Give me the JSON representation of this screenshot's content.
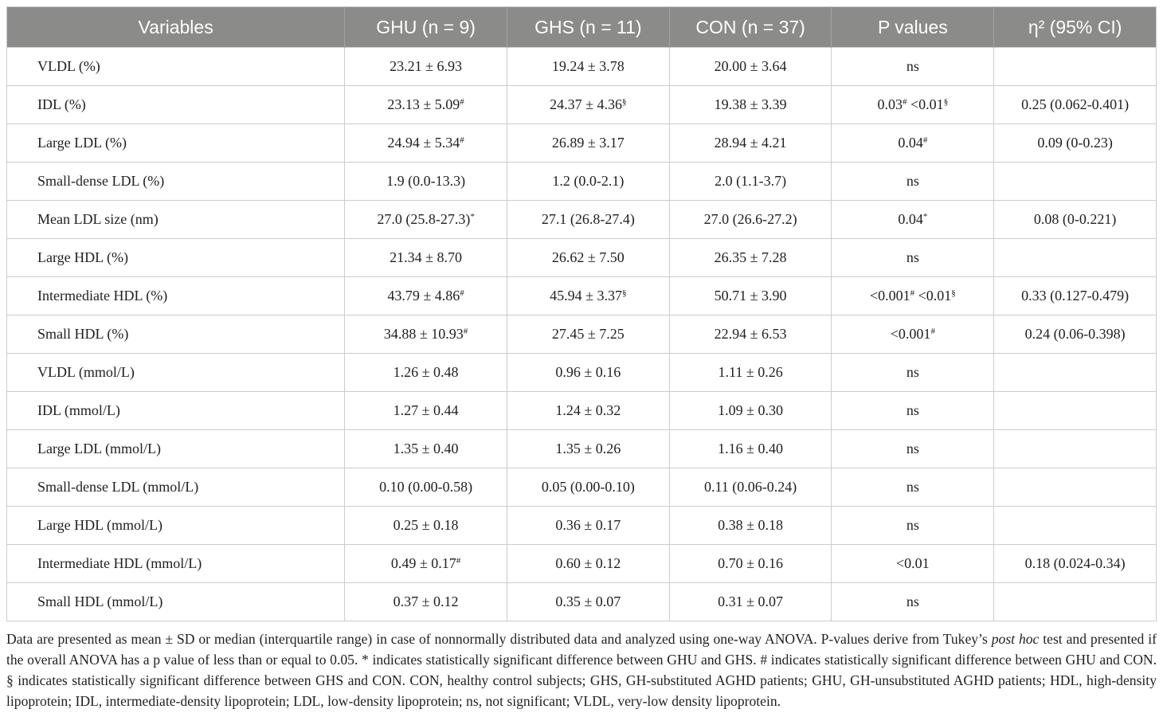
{
  "colors": {
    "header_bg": "#8b8b89",
    "header_text": "#ffffff",
    "border": "#cccccc",
    "text": "#1f1f1f"
  },
  "header": {
    "columns": [
      "Variables",
      "GHU (n = 9)",
      "GHS (n = 11)",
      "CON (n = 37)",
      "P values",
      "η² (95% CI)"
    ]
  },
  "table": {
    "rows": [
      {
        "variable": "VLDL (%)",
        "cells": [
          [
            {
              "t": "23.21 ± 6.93"
            }
          ],
          [
            {
              "t": "19.24 ± 3.78"
            }
          ],
          [
            {
              "t": "20.00 ± 3.64"
            }
          ],
          [
            {
              "t": "ns"
            }
          ],
          []
        ]
      },
      {
        "variable": "IDL (%)",
        "cells": [
          [
            {
              "t": "23.13 ± 5.09"
            },
            {
              "s": "#"
            }
          ],
          [
            {
              "t": "24.37 ± 4.36"
            },
            {
              "s": "§"
            }
          ],
          [
            {
              "t": "19.38 ± 3.39"
            }
          ],
          [
            {
              "t": "0.03"
            },
            {
              "s": "#"
            },
            {
              "t": " <0.01"
            },
            {
              "s": "§"
            }
          ],
          [
            {
              "t": "0.25 (0.062-0.401)"
            }
          ]
        ]
      },
      {
        "variable": "Large LDL (%)",
        "cells": [
          [
            {
              "t": "24.94 ± 5.34"
            },
            {
              "s": "#"
            }
          ],
          [
            {
              "t": "26.89 ± 3.17"
            }
          ],
          [
            {
              "t": "28.94 ± 4.21"
            }
          ],
          [
            {
              "t": "0.04"
            },
            {
              "s": "#"
            }
          ],
          [
            {
              "t": "0.09 (0-0.23)"
            }
          ]
        ]
      },
      {
        "variable": "Small-dense LDL (%)",
        "cells": [
          [
            {
              "t": "1.9 (0.0-13.3)"
            }
          ],
          [
            {
              "t": "1.2 (0.0-2.1)"
            }
          ],
          [
            {
              "t": "2.0 (1.1-3.7)"
            }
          ],
          [
            {
              "t": "ns"
            }
          ],
          []
        ]
      },
      {
        "variable": "Mean LDL size (nm)",
        "cells": [
          [
            {
              "t": "27.0 (25.8-27.3)"
            },
            {
              "s": "*"
            }
          ],
          [
            {
              "t": "27.1 (26.8-27.4)"
            }
          ],
          [
            {
              "t": "27.0 (26.6-27.2)"
            }
          ],
          [
            {
              "t": "0.04"
            },
            {
              "s": "*"
            }
          ],
          [
            {
              "t": "0.08 (0-0.221)"
            }
          ]
        ]
      },
      {
        "variable": "Large HDL (%)",
        "cells": [
          [
            {
              "t": "21.34 ± 8.70"
            }
          ],
          [
            {
              "t": "26.62 ± 7.50"
            }
          ],
          [
            {
              "t": "26.35 ± 7.28"
            }
          ],
          [
            {
              "t": "ns"
            }
          ],
          []
        ]
      },
      {
        "variable": "Intermediate HDL (%)",
        "cells": [
          [
            {
              "t": "43.79 ± 4.86"
            },
            {
              "s": "#"
            }
          ],
          [
            {
              "t": "45.94 ± 3.37"
            },
            {
              "s": "§"
            }
          ],
          [
            {
              "t": "50.71 ± 3.90"
            }
          ],
          [
            {
              "t": "<0.001"
            },
            {
              "s": "#"
            },
            {
              "t": " <0.01"
            },
            {
              "s": "§"
            }
          ],
          [
            {
              "t": "0.33 (0.127-0.479)"
            }
          ]
        ]
      },
      {
        "variable": "Small HDL (%)",
        "cells": [
          [
            {
              "t": "34.88 ± 10.93"
            },
            {
              "s": "#"
            }
          ],
          [
            {
              "t": "27.45 ± 7.25"
            }
          ],
          [
            {
              "t": "22.94 ± 6.53"
            }
          ],
          [
            {
              "t": "<0.001"
            },
            {
              "s": "#"
            }
          ],
          [
            {
              "t": "0.24 (0.06-0.398)"
            }
          ]
        ]
      },
      {
        "variable": "VLDL (mmol/L)",
        "cells": [
          [
            {
              "t": "1.26 ± 0.48"
            }
          ],
          [
            {
              "t": "0.96 ± 0.16"
            }
          ],
          [
            {
              "t": "1.11 ± 0.26"
            }
          ],
          [
            {
              "t": "ns"
            }
          ],
          []
        ]
      },
      {
        "variable": "IDL (mmol/L)",
        "cells": [
          [
            {
              "t": "1.27 ± 0.44"
            }
          ],
          [
            {
              "t": "1.24 ± 0.32"
            }
          ],
          [
            {
              "t": "1.09 ± 0.30"
            }
          ],
          [
            {
              "t": "ns"
            }
          ],
          []
        ]
      },
      {
        "variable": "Large LDL (mmol/L)",
        "cells": [
          [
            {
              "t": "1.35 ± 0.40"
            }
          ],
          [
            {
              "t": "1.35 ± 0.26"
            }
          ],
          [
            {
              "t": "1.16 ± 0.40"
            }
          ],
          [
            {
              "t": "ns"
            }
          ],
          []
        ]
      },
      {
        "variable": "Small-dense LDL (mmol/L)",
        "cells": [
          [
            {
              "t": "0.10 (0.00-0.58)"
            }
          ],
          [
            {
              "t": "0.05 (0.00-0.10)"
            }
          ],
          [
            {
              "t": "0.11 (0.06-0.24)"
            }
          ],
          [
            {
              "t": "ns"
            }
          ],
          []
        ]
      },
      {
        "variable": "Large HDL (mmol/L)",
        "cells": [
          [
            {
              "t": "0.25 ± 0.18"
            }
          ],
          [
            {
              "t": "0.36 ± 0.17"
            }
          ],
          [
            {
              "t": "0.38 ± 0.18"
            }
          ],
          [
            {
              "t": "ns"
            }
          ],
          []
        ]
      },
      {
        "variable": "Intermediate HDL (mmol/L)",
        "cells": [
          [
            {
              "t": "0.49 ± 0.17"
            },
            {
              "s": "#"
            }
          ],
          [
            {
              "t": "0.60 ± 0.12"
            }
          ],
          [
            {
              "t": "0.70 ± 0.16"
            }
          ],
          [
            {
              "t": "<0.01"
            }
          ],
          [
            {
              "t": "0.18 (0.024-0.34)"
            }
          ]
        ]
      },
      {
        "variable": "Small HDL (mmol/L)",
        "cells": [
          [
            {
              "t": "0.37 ± 0.12"
            }
          ],
          [
            {
              "t": "0.35 ± 0.07"
            }
          ],
          [
            {
              "t": "0.31 ± 0.07"
            }
          ],
          [
            {
              "t": "ns"
            }
          ],
          []
        ]
      }
    ]
  },
  "footnote": {
    "segments": [
      {
        "t": "Data are presented as mean ± SD or median (interquartile range) in case of nonnormally distributed data and analyzed using one-way ANOVA. P-values derive from Tukey’s "
      },
      {
        "i": "post hoc"
      },
      {
        "t": " test and presented if the overall ANOVA has a p value of less than or equal to 0.05. * indicates statistically significant difference between GHU and GHS. # indicates statistically significant difference between GHU and CON. § indicates statistically significant difference between GHS and CON. CON, healthy control subjects; GHS, GH-substituted AGHD patients; GHU, GH-unsubstituted AGHD patients; HDL, high-density lipoprotein; IDL, intermediate-density lipoprotein; LDL, low-density lipoprotein; ns, not significant; VLDL, very-low density lipoprotein."
      }
    ]
  }
}
